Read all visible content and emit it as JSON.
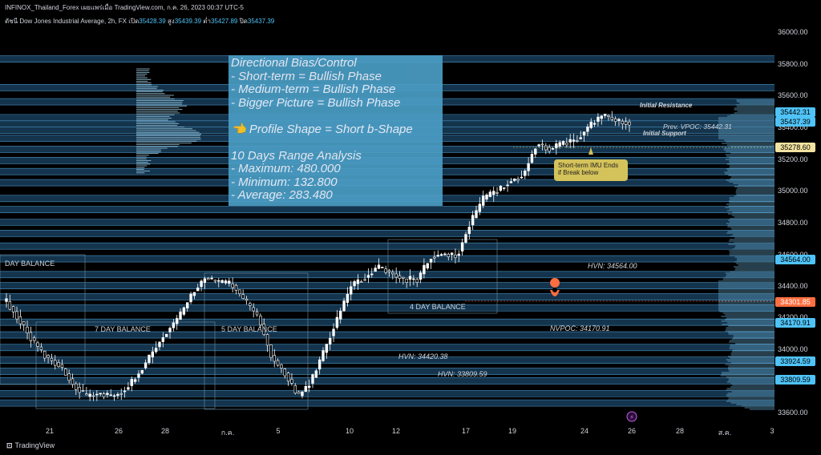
{
  "header": {
    "source_line": "INFINOX_Thailand_Forex เผยแพร่เมื่อ TradingView.com, ก.ค. 26, 2023 00:37 UTC-5",
    "symbol_line": "ดัชนี Dow Jones Industrial Average, 2h, FX",
    "open_label": "เปิด",
    "open_value": "35428.39",
    "high_label": "สูง",
    "high_value": "35439.39",
    "low_label": "ต่ำ",
    "low_value": "35427.89",
    "close_label": "ปิด",
    "close_value": "35437.39"
  },
  "info_box": {
    "lines": [
      "Directional Bias/Control",
      "- Short-term = Bullish Phase",
      "- Medium-term = Bullish Phase",
      "- Bigger Picture = Bullish Phase",
      "",
      "👈 Profile Shape = Short b-Shape",
      "",
      "10 Days Range Analysis",
      "- Maximum: 480.000",
      "- Minimum: 132.800",
      "- Average: 283.480"
    ]
  },
  "callout": {
    "line1": "Short-term IMU Ends",
    "line2": "if Break below"
  },
  "colors": {
    "accent": "#4fc3f7",
    "band": "#163a55",
    "price_line": "#2196f3",
    "current_price": "#ff6e40",
    "callout": "#d4c25a"
  },
  "footer": {
    "brand": "TradingView"
  },
  "chart_data": {
    "type": "line",
    "title": "",
    "ylim": [
      33540,
      36080
    ],
    "y_ticks": [
      "36000.00",
      "35800.00",
      "35600.00",
      "35400.00",
      "35200.00",
      "35000.00",
      "34800.00",
      "34600.00",
      "34400.00",
      "34200.00",
      "34000.00",
      "33600.00"
    ],
    "x_ticks": [
      "21",
      "26",
      "28",
      "ก.ค.",
      "5",
      "10",
      "12",
      "17",
      "19",
      "24",
      "26",
      "28",
      "ส.ค.",
      "3"
    ],
    "price_tags": [
      {
        "value": "35442.31",
        "kind": "level"
      },
      {
        "value": "35437.39",
        "kind": "level"
      },
      {
        "value": "35278.60",
        "kind": "ohlc"
      },
      {
        "value": "34564.00",
        "kind": "level"
      },
      {
        "value": "34301.85",
        "kind": "current"
      },
      {
        "value": "34170.91",
        "kind": "level"
      },
      {
        "value": "33924.59",
        "kind": "level"
      },
      {
        "value": "33809.59",
        "kind": "level"
      }
    ],
    "level_labels": [
      "Initial Resistance",
      "Prev. VPOC: 35442.31",
      "Initial Support",
      "HVN: 34564.00",
      "NVPOC: 34170.91",
      "HVN: 34420.38",
      "HVN: 33809.59"
    ],
    "balance_labels": [
      "DAY BALANCE",
      "7 DAY BALANCE",
      "5 DAY BALANCE",
      "4 DAY BALANCE"
    ],
    "series": [
      {
        "values": [
          34300,
          34180,
          34050,
          33950,
          33900,
          33780,
          33700,
          33720,
          33700,
          33750,
          33850,
          33980,
          34100,
          34200,
          34350,
          34450,
          34420,
          34410,
          34300,
          34200,
          33950,
          33850,
          33700,
          33800,
          34000,
          34200,
          34400,
          34450,
          34520,
          34480,
          34440,
          34440,
          34580,
          34600,
          34590,
          34800,
          34950,
          35000,
          35060,
          35100,
          35300,
          35260,
          35300,
          35320,
          35410,
          35480,
          35440,
          35430
        ]
      }
    ],
    "candle_count": 180
  }
}
